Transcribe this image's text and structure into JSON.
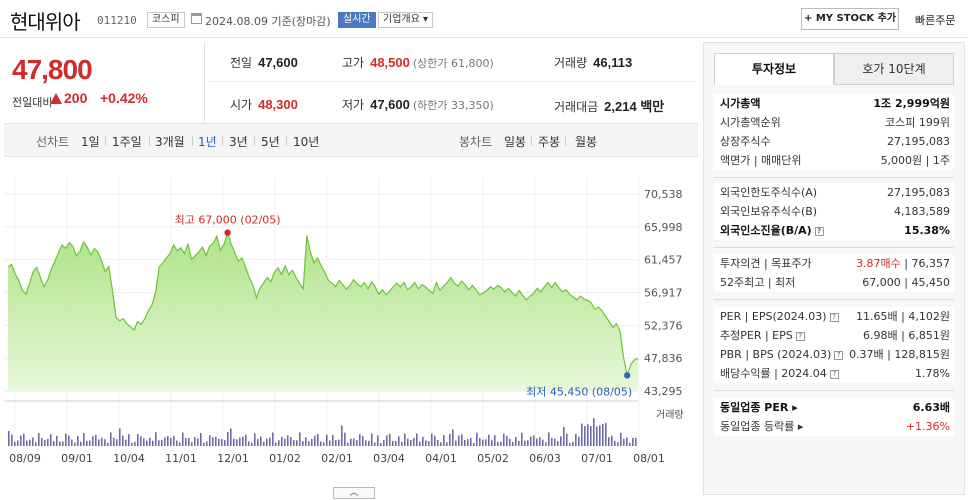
{
  "header": {
    "company": "현대위아",
    "code": "011210",
    "market": "코스피",
    "date": "2024.08.09 기준(장마감)",
    "realtime": "실시간",
    "overview": "기업개요 ▾",
    "mystock": "MY STOCK 추가",
    "quick_order": "빠른주문"
  },
  "price": {
    "current": "47,800",
    "change_label": "전일대비",
    "change": "200",
    "change_pct": "+0.42%",
    "color_up": "#d12b2b"
  },
  "stats": {
    "prev_label": "전일",
    "prev": "47,600",
    "high_label": "고가",
    "high": "48,500",
    "high_limit": "(상한가 61,800)",
    "volume_label": "거래량",
    "volume": "46,113",
    "open_label": "시가",
    "open": "48,300",
    "low_label": "저가",
    "low": "47,600",
    "low_limit": "(하한가 33,350)",
    "amount_label": "거래대금",
    "amount": "2,214 백만"
  },
  "chart_bar": {
    "line_label": "선차트",
    "periods": [
      "1일",
      "1주일",
      "3개월",
      "1년",
      "3년",
      "5년",
      "10년"
    ],
    "selected": "1년",
    "candle_label": "봉차트",
    "candles": [
      "일봉",
      "주봉",
      "월봉"
    ]
  },
  "chart_data": {
    "type": "area",
    "y_ticks": [
      "70,538",
      "65,998",
      "61,457",
      "56,917",
      "52,376",
      "47,836",
      "43,295"
    ],
    "ylim": [
      43295,
      70538
    ],
    "x_ticks": [
      "08/09",
      "09/01",
      "10/04",
      "11/01",
      "12/01",
      "01/02",
      "02/01",
      "03/04",
      "04/01",
      "05/02",
      "06/03",
      "07/01",
      "08/01"
    ],
    "high_annotation": "최고 67,000 (02/05)",
    "low_annotation": "최저 45,450 (08/05)",
    "volume_legend": "거래량",
    "series": [
      {
        "values": [
          60500,
          60800,
          59500,
          58600,
          57200,
          56700,
          58200,
          59800,
          60400,
          59000,
          57700,
          58600,
          60100,
          61200,
          62400,
          63500,
          63000,
          63800,
          63300,
          62000,
          62600,
          63900,
          63200,
          62100,
          63000,
          62500,
          61300,
          59800,
          60500,
          57200,
          53500,
          53000,
          53300,
          52600,
          52200,
          51700,
          52900,
          52500,
          53300,
          54400,
          55200,
          56900,
          60500,
          61000,
          61700,
          62300,
          63500,
          62700,
          63100,
          62300,
          63600,
          61500,
          62000,
          62500,
          63200,
          62000,
          63300,
          63700,
          64700,
          62800,
          63600,
          65200,
          63600,
          62400,
          61200,
          61700,
          60400,
          59000,
          58000,
          56200,
          57500,
          58200,
          59000,
          58400,
          59700,
          60300,
          59400,
          60600,
          59400,
          60000,
          59000,
          58200,
          57400,
          64800,
          62500,
          61000,
          61700,
          60600,
          59700,
          58600,
          58200,
          57700,
          58600,
          58000,
          57400,
          57900,
          58700,
          58100,
          57700,
          58300,
          57400,
          58400,
          57700,
          56700,
          57300,
          56600,
          57100,
          57700,
          58200,
          57700,
          58300,
          57300,
          57700,
          58300,
          57400,
          58000,
          57700,
          57200,
          56800,
          58300,
          57200,
          57800,
          58300,
          59000,
          58200,
          57800,
          58500,
          58000,
          57300,
          57900,
          57300,
          56600,
          56800,
          57200,
          57700,
          57400,
          57900,
          57600,
          57000,
          57500,
          56900,
          56400,
          57200,
          56500,
          55900,
          56400,
          56800,
          57500,
          57000,
          57700,
          58300,
          57600,
          58300,
          57600,
          57000,
          57300,
          56700,
          56300,
          55900,
          56400,
          56000,
          55800,
          55500,
          54600,
          54900,
          54400,
          53600,
          52900,
          52100,
          52600,
          51600,
          47900,
          45450,
          47000,
          47600,
          47800
        ]
      }
    ]
  },
  "side": {
    "tab_invest": "투자정보",
    "tab_hoga": "호가 10단계",
    "sec1": [
      {
        "l": "시가총액",
        "r": "1조 2,999억원",
        "bold": true
      },
      {
        "l": "시가총액순위",
        "r": "코스피 199위"
      },
      {
        "l": "상장주식수",
        "r": "27,195,083"
      },
      {
        "l": "액면가 | 매매단위",
        "r": "5,000원 | 1주"
      }
    ],
    "sec2": [
      {
        "l": "외국인한도주식수(A)",
        "r": "27,195,083"
      },
      {
        "l": "외국인보유주식수(B)",
        "r": "4,183,589"
      },
      {
        "l": "외국인소진율(B/A)",
        "r": "15.38%",
        "bold": true,
        "q": true
      }
    ],
    "sec3": [
      {
        "l": "투자의견 | 목표주가",
        "r1": "3.87매수",
        "r2": "76,357"
      },
      {
        "l": "52주최고 | 최저",
        "r1": "67,000",
        "r2": "45,450"
      }
    ],
    "sec4": [
      {
        "l": "PER | EPS(2024.03)",
        "r1": "11.65배",
        "r2": "4,102원",
        "q": true
      },
      {
        "l": "추정PER | EPS",
        "r1": "6.98배",
        "r2": "6,851원",
        "q": true
      },
      {
        "l": "PBR | BPS (2024.03)",
        "r1": "0.37배",
        "r2": "128,815원",
        "q": true
      },
      {
        "l": "배당수익률 | 2024.04",
        "r": "1.78%",
        "q": true
      }
    ],
    "sec5": [
      {
        "l": "동일업종 PER",
        "r": "6.63배",
        "bold": true
      },
      {
        "l": "동일업종 등락률",
        "r": "+1.36%",
        "red": true
      }
    ]
  }
}
